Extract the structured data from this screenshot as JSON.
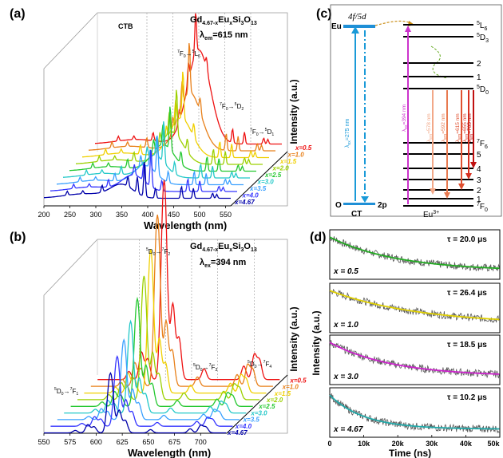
{
  "chart_data": [
    {
      "panel": "(a)",
      "type": "line",
      "subtype": "3d-waterfall excitation spectra",
      "compound": {
        "base": "Gd",
        "sub1": "4.67-x",
        "mid": "Eu",
        "sub2": "x",
        "tail": "Si",
        "sub3": "3",
        "tail2": "O",
        "sub4": "13"
      },
      "condition": {
        "sym": "λ",
        "sub": "em",
        "value": "=615 nm"
      },
      "xlabel": "Wavelength (nm)",
      "xticks": [
        200,
        250,
        300,
        350,
        400,
        450,
        500,
        550
      ],
      "xlim": [
        200,
        560
      ],
      "annotations": [
        {
          "key": "ctb",
          "text": "CTB"
        },
        {
          "key": "l6",
          "pre": "7",
          "a": "F",
          "asub": "0",
          "arrow": "→",
          "post": "5",
          "b": "L",
          "bsub": "6"
        },
        {
          "key": "d2",
          "pre": "7",
          "a": "F",
          "asub": "0",
          "arrow": "→",
          "post": "5",
          "b": "D",
          "bsub": "2"
        },
        {
          "key": "d1",
          "pre": "7",
          "a": "F",
          "asub": "0",
          "arrow": "→",
          "post": "5",
          "b": "D",
          "bsub": "1"
        }
      ],
      "series_labels": [
        "x=0.5",
        "x=1.0",
        "x=1.5",
        "x=2.0",
        "x=2.5",
        "x=3.0",
        "x=3.5",
        "x=4.0",
        "x=4.67"
      ],
      "series_colors": [
        "#ee1111",
        "#e8801a",
        "#f0d000",
        "#9cd000",
        "#24c830",
        "#22c8c8",
        "#3aa0ff",
        "#3535ff",
        "#0000aa"
      ],
      "series": [
        {
          "x": "0.5",
          "ctb_center": 400,
          "ctb_height": 1.0,
          "line_height": 0.78
        },
        {
          "x": "1.0",
          "ctb_center": 395,
          "ctb_height": 0.62,
          "line_height": 0.95
        },
        {
          "x": "1.5",
          "ctb_center": 390,
          "ctb_height": 0.42,
          "line_height": 0.9
        },
        {
          "x": "2.0",
          "ctb_center": 385,
          "ctb_height": 0.34,
          "line_height": 0.86
        },
        {
          "x": "2.5",
          "ctb_center": 380,
          "ctb_height": 0.28,
          "line_height": 0.82
        },
        {
          "x": "3.0",
          "ctb_center": 375,
          "ctb_height": 0.24,
          "line_height": 0.78
        },
        {
          "x": "3.5",
          "ctb_center": 370,
          "ctb_height": 0.2,
          "line_height": 0.74
        },
        {
          "x": "4.0",
          "ctb_center": 360,
          "ctb_height": 0.17,
          "line_height": 0.7
        },
        {
          "x": "4.67",
          "ctb_center": 350,
          "ctb_height": 0.14,
          "line_height": 0.66
        }
      ],
      "lines_nm": [
        245,
        275,
        312,
        362,
        380,
        394,
        415,
        465,
        488,
        525,
        533
      ]
    },
    {
      "panel": "(b)",
      "type": "line",
      "subtype": "3d-waterfall emission spectra",
      "compound": {
        "base": "Gd",
        "sub1": "4.67-x",
        "mid": "Eu",
        "sub2": "x",
        "tail": "Si",
        "sub3": "3",
        "tail2": "O",
        "sub4": "13"
      },
      "condition": {
        "sym": "λ",
        "sub": "ex",
        "value": "=394 nm"
      },
      "xlabel": "Wavelength (nm)",
      "xticks": [
        550,
        575,
        600,
        625,
        650,
        675,
        700
      ],
      "xlim": [
        550,
        725
      ],
      "annotations": [
        {
          "key": "f2",
          "pre": "5",
          "a": "D",
          "asub": "0",
          "arrow": "→",
          "post": "7",
          "b": "F",
          "bsub": "2"
        },
        {
          "key": "f3",
          "pre": "5",
          "a": "D",
          "asub": "0",
          "arrow": "→",
          "post": "7",
          "b": "F",
          "bsub": "3"
        },
        {
          "key": "f4",
          "pre": "5",
          "a": "D",
          "asub": "0",
          "arrow": "→",
          "post": "7",
          "b": "F",
          "bsub": "4"
        },
        {
          "key": "f1",
          "pre": "5",
          "a": "D",
          "asub": "0",
          "arrow": "→",
          "post": "7",
          "b": "F",
          "bsub": "1"
        }
      ],
      "series_labels": [
        "x=0.5",
        "x=1.0",
        "x=1.5",
        "x=2.0",
        "x=2.5",
        "x=3.0",
        "x=3.5",
        "x=4.0",
        "x=4.67"
      ],
      "series_colors": [
        "#ee1111",
        "#e8801a",
        "#f0d000",
        "#9cd000",
        "#24c830",
        "#22c8c8",
        "#3aa0ff",
        "#3535ff",
        "#0000aa"
      ],
      "series": [
        {
          "x": "0.5",
          "peak_height": 1.0
        },
        {
          "x": "1.0",
          "peak_height": 0.86
        },
        {
          "x": "1.5",
          "peak_height": 0.72
        },
        {
          "x": "2.0",
          "peak_height": 0.62
        },
        {
          "x": "2.5",
          "peak_height": 0.54
        },
        {
          "x": "3.0",
          "peak_height": 0.46
        },
        {
          "x": "3.5",
          "peak_height": 0.4
        },
        {
          "x": "4.0",
          "peak_height": 0.35
        },
        {
          "x": "4.67",
          "peak_height": 0.3
        }
      ],
      "peaks_nm": [
        {
          "c": 580,
          "h": 0.06
        },
        {
          "c": 592,
          "h": 0.2
        },
        {
          "c": 598,
          "h": 0.15
        },
        {
          "c": 612,
          "h": 0.85
        },
        {
          "c": 615,
          "h": 1.0
        },
        {
          "c": 622,
          "h": 0.55
        },
        {
          "c": 628,
          "h": 0.3
        },
        {
          "c": 652,
          "h": 0.08
        },
        {
          "c": 690,
          "h": 0.1
        },
        {
          "c": 700,
          "h": 0.18
        },
        {
          "c": 705,
          "h": 0.14
        }
      ]
    },
    {
      "panel": "(c)",
      "type": "diagram",
      "subtype": "energy level diagram",
      "left_levels": {
        "top_label": "Eu",
        "top_state": "4f/5d",
        "bottom_label": "O",
        "bottom_state": "2p",
        "footer": "CT"
      },
      "ct_arrow": {
        "sym": "λ",
        "sub": "ex",
        "value": "=275 nm"
      },
      "eu_footer": {
        "base": "Eu",
        "sup": "3+"
      },
      "upper_levels": [
        {
          "pre": "5",
          "b": "L",
          "bsub": "6"
        },
        {
          "pre": "5",
          "b": "D",
          "bsub": "3"
        },
        {
          "pre": "",
          "b": "2",
          "bsub": ""
        },
        {
          "pre": "",
          "b": "1",
          "bsub": ""
        },
        {
          "pre": "5",
          "b": "D",
          "bsub": "0"
        }
      ],
      "lower_levels": [
        {
          "pre": "7",
          "b": "F",
          "bsub": "6"
        },
        {
          "pre": "",
          "b": "5",
          "bsub": ""
        },
        {
          "pre": "",
          "b": "4",
          "bsub": ""
        },
        {
          "pre": "",
          "b": "3",
          "bsub": ""
        },
        {
          "pre": "",
          "b": "2",
          "bsub": ""
        },
        {
          "pre": "",
          "b": "1",
          "bsub": ""
        },
        {
          "pre": "7",
          "b": "F",
          "bsub": "0"
        }
      ],
      "transitions": [
        {
          "sym": "λ",
          "sub": "ex",
          "value": "=394 nm",
          "color": "#cc33cc"
        },
        {
          "sym": "λ",
          "sub": "em",
          "value": "=578 nm",
          "color": "#f2a888"
        },
        {
          "sym": "λ",
          "sub": "em",
          "value": "=592 nm",
          "color": "#e87a50"
        },
        {
          "sym": "λ",
          "sub": "em",
          "value": "=615 nm",
          "color": "#e05030"
        },
        {
          "sym": "λ",
          "sub": "em",
          "value": "=655 nm",
          "color": "#d83020"
        },
        {
          "sym": "λ",
          "sub": "em",
          "value": "=705 nm",
          "color": "#c01010"
        }
      ]
    },
    {
      "panel": "(d)",
      "type": "line",
      "subtype": "decay curves",
      "ylabel": "Intensity (a.u.)",
      "xlabel": "Time (ns)",
      "xticks": [
        "0",
        "10k",
        "20k",
        "30k",
        "40k",
        "50k"
      ],
      "xlim": [
        0,
        50000
      ],
      "series": [
        {
          "x_label": "x = 0.5",
          "tau": "τ = 20.0 μs",
          "tau_us": 20.0,
          "fit_color": "#22aa22"
        },
        {
          "x_label": "x = 1.0",
          "tau": "τ = 26.4 μs",
          "tau_us": 26.4,
          "fit_color": "#e0d000"
        },
        {
          "x_label": "x = 3.0",
          "tau": "τ = 18.5 μs",
          "tau_us": 18.5,
          "fit_color": "#cc22cc"
        },
        {
          "x_label": "x = 4.67",
          "tau": "τ = 10.2 μs",
          "tau_us": 10.2,
          "fit_color": "#22aaaa"
        }
      ]
    }
  ],
  "shared": {
    "ylabel": "Intensity (a.u.)"
  }
}
